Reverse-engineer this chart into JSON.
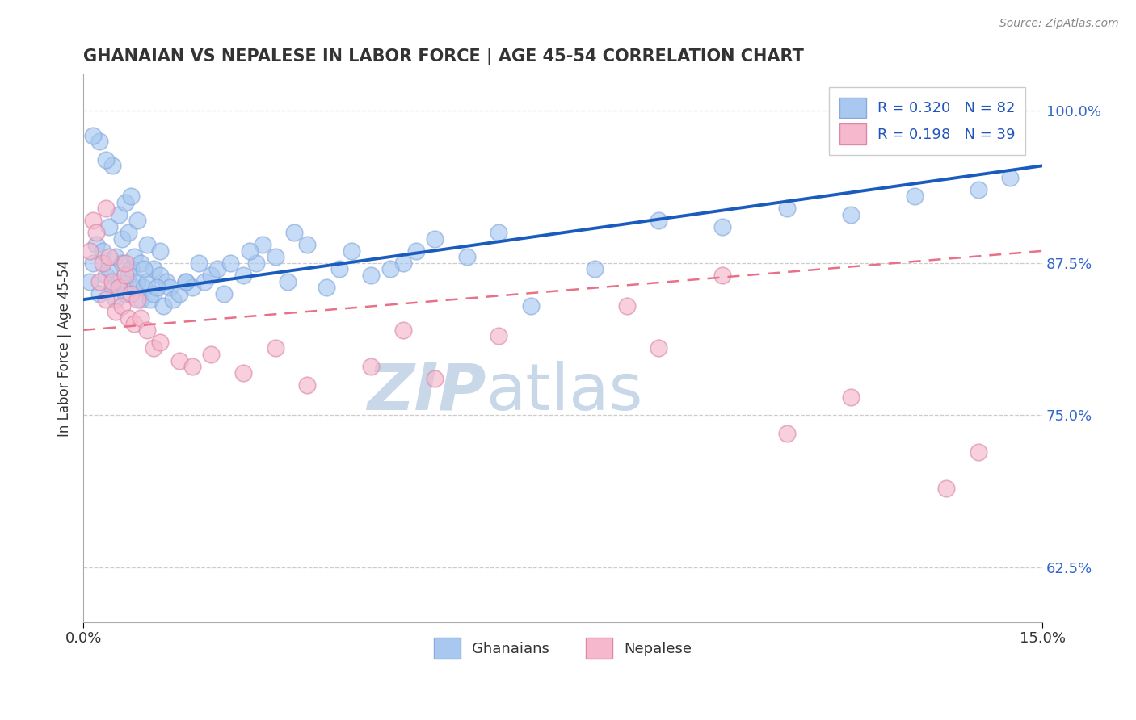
{
  "title": "GHANAIAN VS NEPALESE IN LABOR FORCE | AGE 45-54 CORRELATION CHART",
  "source": "Source: ZipAtlas.com",
  "ylabel": "In Labor Force | Age 45-54",
  "xmin": 0.0,
  "xmax": 15.0,
  "ymin": 58.0,
  "ymax": 103.0,
  "yticks": [
    62.5,
    75.0,
    87.5,
    100.0
  ],
  "legend_r1": "R = 0.320",
  "legend_n1": "N = 82",
  "legend_r2": "R = 0.198",
  "legend_n2": "N = 39",
  "blue_color": "#A8C8F0",
  "blue_edge_color": "#88AADD",
  "pink_color": "#F5B8CC",
  "pink_edge_color": "#DD88AA",
  "blue_line_color": "#1A5BBE",
  "pink_line_color": "#E87088",
  "dashed_line_color": "#E8A0B0",
  "watermark": "ZIPatlas",
  "watermark_color": "#C8D8E8",
  "blue_line_x0": 0.0,
  "blue_line_y0": 84.5,
  "blue_line_x1": 15.0,
  "blue_line_y1": 95.5,
  "pink_line_x0": 0.0,
  "pink_line_y0": 82.0,
  "pink_line_x1": 15.0,
  "pink_line_y1": 88.5,
  "ghanaian_x": [
    0.1,
    0.15,
    0.2,
    0.25,
    0.3,
    0.35,
    0.4,
    0.4,
    0.45,
    0.5,
    0.5,
    0.55,
    0.6,
    0.6,
    0.65,
    0.7,
    0.7,
    0.75,
    0.8,
    0.8,
    0.85,
    0.9,
    0.9,
    0.95,
    1.0,
    1.0,
    1.05,
    1.1,
    1.1,
    1.2,
    1.2,
    1.25,
    1.3,
    1.35,
    1.4,
    1.5,
    1.6,
    1.7,
    1.8,
    1.9,
    2.0,
    2.1,
    2.2,
    2.5,
    2.7,
    3.0,
    3.2,
    3.5,
    3.8,
    4.0,
    4.2,
    4.5,
    5.0,
    5.5,
    6.0,
    6.5,
    7.0,
    8.0,
    9.0,
    10.0,
    11.0,
    12.0,
    13.0,
    14.0,
    14.5,
    5.2,
    4.8,
    3.3,
    2.8,
    2.3,
    1.6,
    0.55,
    0.65,
    0.75,
    0.85,
    0.45,
    0.35,
    0.25,
    0.15,
    2.6,
    1.15,
    0.95
  ],
  "ghanaian_y": [
    86.0,
    87.5,
    89.0,
    85.0,
    88.5,
    86.5,
    87.0,
    90.5,
    85.5,
    84.5,
    88.0,
    86.0,
    87.5,
    89.5,
    85.0,
    86.5,
    90.0,
    87.0,
    85.5,
    88.0,
    86.0,
    84.5,
    87.5,
    85.5,
    86.0,
    89.0,
    84.5,
    87.0,
    85.0,
    86.5,
    88.5,
    84.0,
    86.0,
    85.5,
    84.5,
    85.0,
    86.0,
    85.5,
    87.5,
    86.0,
    86.5,
    87.0,
    85.0,
    86.5,
    87.5,
    88.0,
    86.0,
    89.0,
    85.5,
    87.0,
    88.5,
    86.5,
    87.5,
    89.5,
    88.0,
    90.0,
    84.0,
    87.0,
    91.0,
    90.5,
    92.0,
    91.5,
    93.0,
    93.5,
    94.5,
    88.5,
    87.0,
    90.0,
    89.0,
    87.5,
    86.0,
    91.5,
    92.5,
    93.0,
    91.0,
    95.5,
    96.0,
    97.5,
    98.0,
    88.5,
    85.5,
    87.0
  ],
  "nepalese_x": [
    0.1,
    0.15,
    0.2,
    0.25,
    0.3,
    0.35,
    0.4,
    0.45,
    0.5,
    0.55,
    0.6,
    0.65,
    0.7,
    0.75,
    0.8,
    0.85,
    0.9,
    1.0,
    1.1,
    1.2,
    1.5,
    2.0,
    2.5,
    3.0,
    3.5,
    4.5,
    5.0,
    5.5,
    6.5,
    8.5,
    9.0,
    10.0,
    11.0,
    12.0,
    13.5,
    14.0,
    1.7,
    0.65,
    0.35
  ],
  "nepalese_y": [
    88.5,
    91.0,
    90.0,
    86.0,
    87.5,
    84.5,
    88.0,
    86.0,
    83.5,
    85.5,
    84.0,
    86.5,
    83.0,
    85.0,
    82.5,
    84.5,
    83.0,
    82.0,
    80.5,
    81.0,
    79.5,
    80.0,
    78.5,
    80.5,
    77.5,
    79.0,
    82.0,
    78.0,
    81.5,
    84.0,
    80.5,
    86.5,
    73.5,
    76.5,
    69.0,
    72.0,
    79.0,
    87.5,
    92.0
  ]
}
